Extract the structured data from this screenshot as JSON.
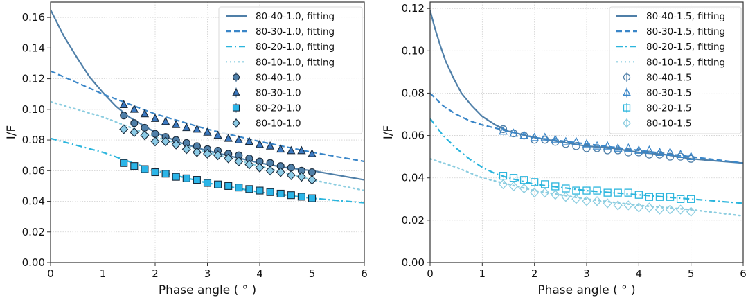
{
  "chart_data": [
    {
      "type": "line",
      "xlabel": "Phase angle ( ° )",
      "ylabel": "I/F",
      "xlim": [
        0,
        6
      ],
      "ylim": [
        0,
        0.17
      ],
      "xticks": [
        0,
        1,
        2,
        3,
        4,
        5,
        6
      ],
      "xtick_labels": [
        "0",
        "1",
        "2",
        "3",
        "4",
        "5",
        "6"
      ],
      "yticks": [
        0,
        0.02,
        0.04,
        0.06,
        0.08,
        0.1,
        0.12,
        0.14,
        0.16
      ],
      "ytick_labels": [
        "0.00",
        "0.02",
        "0.04",
        "0.06",
        "0.08",
        "0.10",
        "0.12",
        "0.14",
        "0.16"
      ],
      "grid": true,
      "legend_position": "top-right",
      "fits": [
        {
          "name": "80-40-1.0, fitting",
          "style": "solid",
          "color": "#4f7fa8",
          "x": [
            0,
            0.25,
            0.5,
            0.75,
            1.0,
            1.25,
            1.5,
            2,
            2.5,
            3,
            3.5,
            4,
            4.5,
            5,
            5.5,
            6
          ],
          "y": [
            0.165,
            0.148,
            0.134,
            0.121,
            0.111,
            0.102,
            0.095,
            0.085,
            0.078,
            0.073,
            0.069,
            0.065,
            0.062,
            0.06,
            0.057,
            0.054
          ]
        },
        {
          "name": "80-30-1.0, fitting",
          "style": "dashed",
          "color": "#3a86c8",
          "x": [
            0,
            1,
            2,
            3,
            4,
            5,
            6
          ],
          "y": [
            0.125,
            0.11,
            0.097,
            0.087,
            0.079,
            0.072,
            0.066
          ]
        },
        {
          "name": "80-20-1.0, fitting",
          "style": "dashdot",
          "color": "#2bb5dd",
          "x": [
            0,
            1,
            2,
            3,
            4,
            5,
            6
          ],
          "y": [
            0.081,
            0.072,
            0.06,
            0.052,
            0.046,
            0.042,
            0.039
          ]
        },
        {
          "name": "80-10-1.0, fitting",
          "style": "dotted",
          "color": "#8ccde0",
          "x": [
            0,
            1,
            2,
            3,
            4,
            5,
            6
          ],
          "y": [
            0.105,
            0.095,
            0.082,
            0.072,
            0.063,
            0.054,
            0.047
          ]
        }
      ],
      "series": [
        {
          "name": "80-40-1.0",
          "marker": "circle",
          "fill": "#4f7fa8",
          "edge": "#1a2a3a",
          "x": [
            1.4,
            1.6,
            1.8,
            2.0,
            2.2,
            2.4,
            2.6,
            2.8,
            3.0,
            3.2,
            3.4,
            3.6,
            3.8,
            4.0,
            4.2,
            4.4,
            4.6,
            4.8,
            5.0
          ],
          "y": [
            0.096,
            0.091,
            0.088,
            0.084,
            0.082,
            0.08,
            0.078,
            0.076,
            0.074,
            0.073,
            0.071,
            0.07,
            0.068,
            0.066,
            0.065,
            0.063,
            0.062,
            0.06,
            0.059
          ]
        },
        {
          "name": "80-30-1.0",
          "marker": "triangle",
          "fill": "#3a78c0",
          "edge": "#1a2a3a",
          "x": [
            1.4,
            1.6,
            1.8,
            2.0,
            2.2,
            2.4,
            2.6,
            2.8,
            3.0,
            3.2,
            3.4,
            3.6,
            3.8,
            4.0,
            4.2,
            4.4,
            4.6,
            4.8,
            5.0
          ],
          "y": [
            0.103,
            0.1,
            0.097,
            0.094,
            0.092,
            0.09,
            0.088,
            0.087,
            0.085,
            0.083,
            0.081,
            0.08,
            0.079,
            0.077,
            0.076,
            0.074,
            0.073,
            0.073,
            0.071
          ]
        },
        {
          "name": "80-20-1.0",
          "marker": "square",
          "fill": "#2bb5e8",
          "edge": "#1a2a3a",
          "x": [
            1.4,
            1.6,
            1.8,
            2.0,
            2.2,
            2.4,
            2.6,
            2.8,
            3.0,
            3.2,
            3.4,
            3.6,
            3.8,
            4.0,
            4.2,
            4.4,
            4.6,
            4.8,
            5.0
          ],
          "y": [
            0.065,
            0.063,
            0.061,
            0.059,
            0.058,
            0.056,
            0.055,
            0.054,
            0.052,
            0.051,
            0.05,
            0.049,
            0.048,
            0.047,
            0.046,
            0.045,
            0.044,
            0.043,
            0.042
          ]
        },
        {
          "name": "80-10-1.0",
          "marker": "diamond",
          "fill": "#8ccbe6",
          "edge": "#1a2a3a",
          "x": [
            1.4,
            1.6,
            1.8,
            2.0,
            2.2,
            2.4,
            2.6,
            2.8,
            3.0,
            3.2,
            3.4,
            3.6,
            3.8,
            4.0,
            4.2,
            4.4,
            4.6,
            4.8,
            5.0
          ],
          "y": [
            0.087,
            0.085,
            0.083,
            0.079,
            0.079,
            0.077,
            0.074,
            0.072,
            0.071,
            0.07,
            0.068,
            0.066,
            0.064,
            0.062,
            0.06,
            0.059,
            0.057,
            0.056,
            0.054
          ]
        }
      ]
    },
    {
      "type": "line",
      "xlabel": "Phase angle ( ° )",
      "ylabel": "I/F",
      "xlim": [
        0,
        6
      ],
      "ylim": [
        0,
        0.123
      ],
      "xticks": [
        0,
        1,
        2,
        3,
        4,
        5,
        6
      ],
      "xtick_labels": [
        "0",
        "1",
        "2",
        "3",
        "4",
        "5",
        "6"
      ],
      "yticks": [
        0,
        0.02,
        0.04,
        0.06,
        0.08,
        0.1,
        0.12
      ],
      "ytick_labels": [
        "0.00",
        "0.02",
        "0.04",
        "0.06",
        "0.08",
        "0.10",
        "0.12"
      ],
      "grid": true,
      "legend_position": "top-right",
      "fits": [
        {
          "name": "80-40-1.5, fitting",
          "style": "solid",
          "color": "#4f7fa8",
          "x": [
            0,
            0.1,
            0.2,
            0.3,
            0.45,
            0.6,
            0.8,
            1.0,
            1.25,
            1.5,
            2,
            2.5,
            3,
            3.5,
            4,
            4.5,
            5,
            5.5,
            6
          ],
          "y": [
            0.119,
            0.11,
            0.102,
            0.095,
            0.087,
            0.08,
            0.074,
            0.069,
            0.065,
            0.062,
            0.059,
            0.057,
            0.055,
            0.054,
            0.052,
            0.051,
            0.049,
            0.048,
            0.047
          ]
        },
        {
          "name": "80-30-1.5, fitting",
          "style": "dashed",
          "color": "#3a86c8",
          "x": [
            0,
            0.25,
            0.5,
            0.75,
            1.0,
            1.5,
            2,
            3,
            4,
            5,
            6
          ],
          "y": [
            0.08,
            0.074,
            0.07,
            0.067,
            0.065,
            0.062,
            0.059,
            0.056,
            0.053,
            0.05,
            0.047
          ]
        },
        {
          "name": "80-20-1.5, fitting",
          "style": "dashdot",
          "color": "#2bb5dd",
          "x": [
            0,
            0.25,
            0.5,
            0.75,
            1.0,
            1.25,
            1.5,
            2,
            3,
            4,
            5,
            6
          ],
          "y": [
            0.068,
            0.06,
            0.054,
            0.049,
            0.045,
            0.042,
            0.04,
            0.037,
            0.034,
            0.032,
            0.03,
            0.028
          ]
        },
        {
          "name": "80-10-1.5, fitting",
          "style": "dotted",
          "color": "#8ccde0",
          "x": [
            0,
            0.5,
            1.0,
            1.5,
            2,
            3,
            4,
            5,
            6
          ],
          "y": [
            0.049,
            0.045,
            0.04,
            0.037,
            0.034,
            0.03,
            0.027,
            0.025,
            0.022
          ]
        }
      ],
      "series": [
        {
          "name": "80-40-1.5",
          "marker": "circle",
          "fill": "none",
          "edge": "#4f7fa8",
          "x": [
            1.4,
            1.6,
            1.8,
            2.0,
            2.2,
            2.4,
            2.6,
            2.8,
            3.0,
            3.2,
            3.4,
            3.6,
            3.8,
            4.0,
            4.2,
            4.4,
            4.6,
            4.8,
            5.0
          ],
          "y": [
            0.063,
            0.061,
            0.06,
            0.058,
            0.058,
            0.057,
            0.056,
            0.055,
            0.054,
            0.054,
            0.053,
            0.053,
            0.052,
            0.052,
            0.051,
            0.051,
            0.05,
            0.05,
            0.049
          ]
        },
        {
          "name": "80-30-1.5",
          "marker": "triangle",
          "fill": "none",
          "edge": "#3a86c8",
          "x": [
            1.4,
            1.6,
            1.8,
            2.0,
            2.2,
            2.4,
            2.6,
            2.8,
            3.0,
            3.2,
            3.4,
            3.6,
            3.8,
            4.0,
            4.2,
            4.4,
            4.6,
            4.8,
            5.0
          ],
          "y": [
            0.062,
            0.061,
            0.06,
            0.059,
            0.059,
            0.058,
            0.057,
            0.057,
            0.056,
            0.055,
            0.055,
            0.054,
            0.054,
            0.053,
            0.053,
            0.052,
            0.052,
            0.051,
            0.05
          ]
        },
        {
          "name": "80-20-1.5",
          "marker": "square",
          "fill": "none",
          "edge": "#2bb5dd",
          "x": [
            1.4,
            1.6,
            1.8,
            2.0,
            2.2,
            2.4,
            2.6,
            2.8,
            3.0,
            3.2,
            3.4,
            3.6,
            3.8,
            4.0,
            4.2,
            4.4,
            4.6,
            4.8,
            5.0
          ],
          "y": [
            0.041,
            0.04,
            0.039,
            0.038,
            0.037,
            0.036,
            0.035,
            0.034,
            0.034,
            0.034,
            0.033,
            0.033,
            0.033,
            0.032,
            0.031,
            0.031,
            0.031,
            0.03,
            0.03
          ]
        },
        {
          "name": "80-10-1.5",
          "marker": "diamond",
          "fill": "none",
          "edge": "#8ccde0",
          "x": [
            1.4,
            1.6,
            1.8,
            2.0,
            2.2,
            2.4,
            2.6,
            2.8,
            3.0,
            3.2,
            3.4,
            3.6,
            3.8,
            4.0,
            4.2,
            4.4,
            4.6,
            4.8,
            5.0
          ],
          "y": [
            0.037,
            0.036,
            0.035,
            0.033,
            0.033,
            0.032,
            0.031,
            0.03,
            0.029,
            0.029,
            0.028,
            0.027,
            0.027,
            0.026,
            0.026,
            0.025,
            0.025,
            0.025,
            0.024
          ]
        }
      ]
    }
  ]
}
